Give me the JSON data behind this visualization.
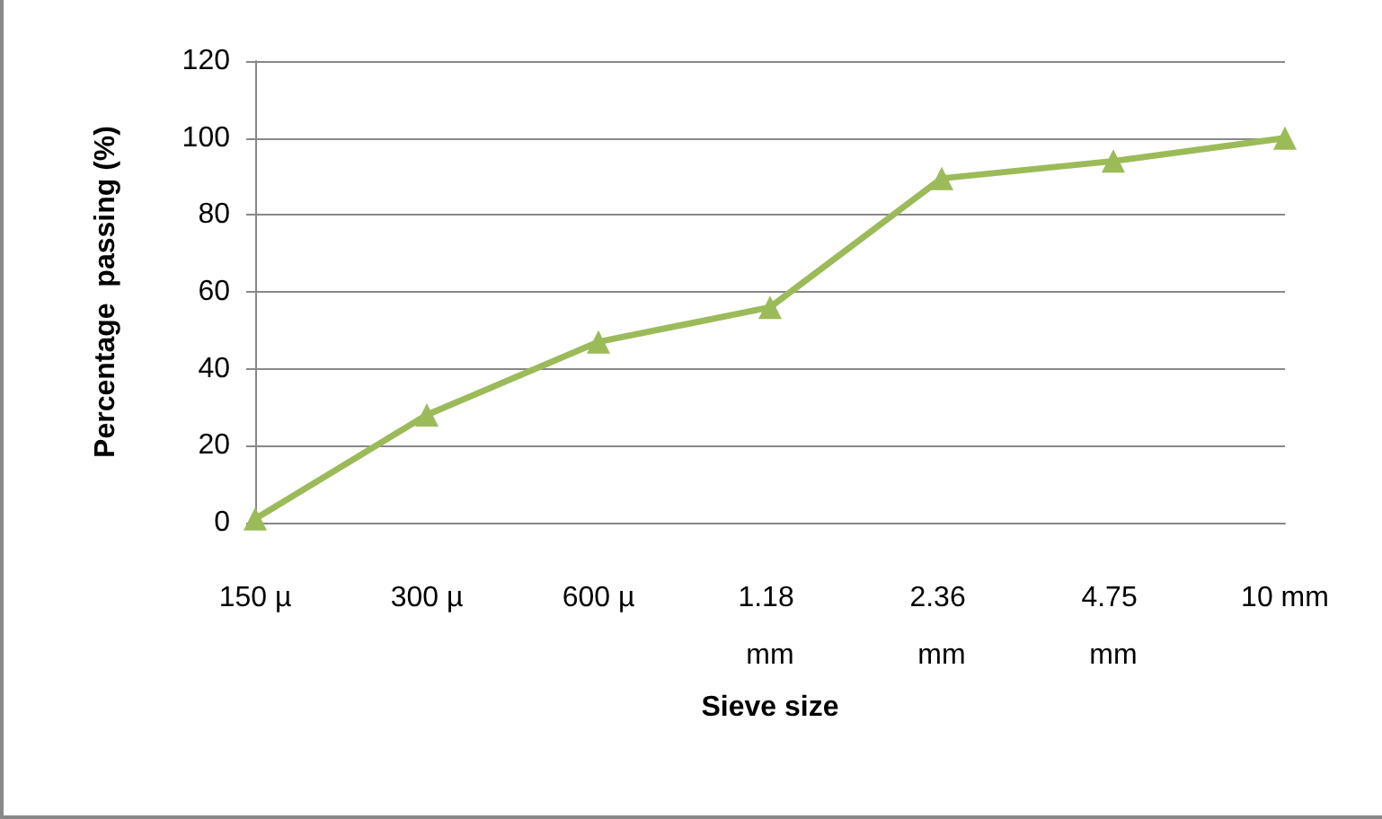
{
  "chart_data": {
    "type": "line",
    "xlabel": "Sieve size",
    "ylabel": "Percentage  passing (%)",
    "categories": [
      "150 µ",
      "300 µ",
      "600 µ",
      "1.18 mm",
      "2.36 mm",
      "4.75 mm",
      "10 mm"
    ],
    "series": [
      {
        "color": "#9bbb59",
        "values": [
          1,
          28,
          47,
          56,
          89.5,
          94,
          100
        ]
      }
    ],
    "ylim": [
      0,
      120
    ],
    "yticks": [
      0,
      20,
      40,
      60,
      80,
      100,
      120
    ],
    "grid": "y",
    "marker": "triangle",
    "line_style": "solid"
  }
}
